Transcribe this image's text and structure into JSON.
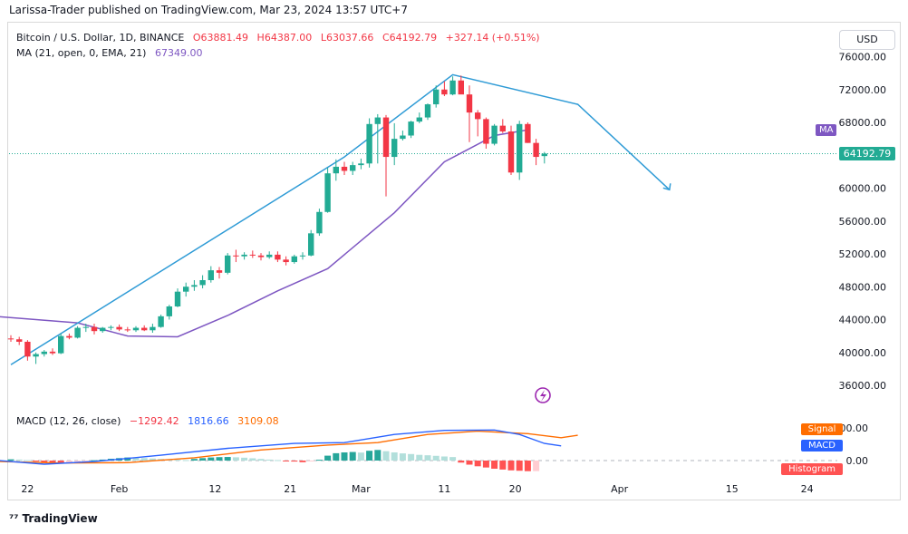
{
  "header": {
    "published": "Larissa-Trader published on TradingView.com, Mar 23, 2024 13:57 UTC+7"
  },
  "legend": {
    "symbol": "Bitcoin / U.S. Dollar, 1D, BINANCE",
    "open": "O63881.49",
    "high": "H64387.00",
    "low": "L63037.66",
    "close": "C64192.79",
    "change": "+327.14 (+0.51%)",
    "ma_label": "MA (21, open, 0, EMA, 21)",
    "ma_value": "67349.00",
    "macd_label": "MACD (12, 26, close)",
    "macd_hist": "−1292.42",
    "macd_value": "1816.66",
    "macd_signal": "3109.08"
  },
  "currency_button": "USD",
  "badges": {
    "indicator": "MA",
    "price": "64192.79",
    "signal": "Signal",
    "macd": "MACD",
    "histogram": "Histogram"
  },
  "footer": {
    "logo": "TradingView"
  },
  "colors": {
    "up": "#22ab94",
    "down": "#f23645",
    "ma": "#7e57c2",
    "projection": "#2f9bd6",
    "macd": "#2962ff",
    "signal": "#ff6d00",
    "hist_up": "#26a69a",
    "hist_down": "#ff5252"
  },
  "chart_data": {
    "type": "candlestick",
    "price_axis": {
      "ticks": [
        "76000.00",
        "72000.00",
        "68000.00",
        "64000.00",
        "60000.00",
        "56000.00",
        "52000.00",
        "48000.00",
        "44000.00",
        "40000.00",
        "36000.00"
      ],
      "range": [
        33000,
        77000
      ]
    },
    "time_axis": {
      "labels": [
        "22",
        "Feb",
        "12",
        "21",
        "Mar",
        "11",
        "20",
        "Apr",
        "15",
        "24"
      ]
    },
    "macd_axis": {
      "ticks": [
        "4000.00",
        "0.00"
      ]
    },
    "candles": [
      [
        41700,
        42100,
        41300,
        41600
      ],
      [
        41600,
        41900,
        40900,
        41300
      ],
      [
        41300,
        41500,
        39000,
        39500
      ],
      [
        39500,
        40000,
        38600,
        39800
      ],
      [
        39800,
        40300,
        39500,
        40100
      ],
      [
        40100,
        40500,
        39700,
        39900
      ],
      [
        39900,
        42300,
        39800,
        42000
      ],
      [
        42000,
        42300,
        41600,
        41800
      ],
      [
        41800,
        43200,
        41700,
        43000
      ],
      [
        43000,
        43500,
        42500,
        43100
      ],
      [
        43100,
        43500,
        42200,
        42600
      ],
      [
        42600,
        43100,
        42400,
        43000
      ],
      [
        43000,
        43300,
        42700,
        43100
      ],
      [
        43100,
        43400,
        42600,
        42800
      ],
      [
        42800,
        43100,
        42500,
        42700
      ],
      [
        42700,
        43200,
        42500,
        43000
      ],
      [
        43000,
        43300,
        42600,
        42700
      ],
      [
        42700,
        43500,
        42400,
        43100
      ],
      [
        43100,
        44600,
        43000,
        44400
      ],
      [
        44400,
        45800,
        44000,
        45600
      ],
      [
        45600,
        47800,
        45500,
        47400
      ],
      [
        47400,
        48500,
        46800,
        48000
      ],
      [
        48000,
        48800,
        47500,
        48200
      ],
      [
        48200,
        49400,
        47800,
        48800
      ],
      [
        48800,
        50500,
        48500,
        50000
      ],
      [
        50000,
        50400,
        49000,
        49700
      ],
      [
        49700,
        52100,
        49500,
        51800
      ],
      [
        51800,
        52500,
        51000,
        51700
      ],
      [
        51700,
        52200,
        51300,
        51900
      ],
      [
        51900,
        52400,
        51500,
        51800
      ],
      [
        51800,
        52100,
        51200,
        51600
      ],
      [
        51600,
        52300,
        51400,
        51900
      ],
      [
        51900,
        52300,
        51000,
        51300
      ],
      [
        51300,
        51700,
        50600,
        51000
      ],
      [
        51000,
        51900,
        50800,
        51700
      ],
      [
        51700,
        52200,
        51300,
        51800
      ],
      [
        51800,
        54900,
        51700,
        54500
      ],
      [
        54500,
        57500,
        54200,
        57100
      ],
      [
        57100,
        62500,
        57000,
        61800
      ],
      [
        61800,
        63500,
        60900,
        62600
      ],
      [
        62600,
        63200,
        61600,
        62100
      ],
      [
        62100,
        63200,
        61600,
        62800
      ],
      [
        62800,
        63600,
        62300,
        63000
      ],
      [
        63000,
        68500,
        62500,
        67800
      ],
      [
        67800,
        69000,
        63000,
        68600
      ],
      [
        68600,
        68900,
        59000,
        63800
      ],
      [
        63800,
        67900,
        62800,
        66000
      ],
      [
        66000,
        67000,
        65800,
        66400
      ],
      [
        66400,
        68200,
        66100,
        68100
      ],
      [
        68100,
        69200,
        67900,
        68600
      ],
      [
        68600,
        70300,
        68300,
        70200
      ],
      [
        70200,
        72500,
        69800,
        72000
      ],
      [
        72000,
        73000,
        71200,
        71400
      ],
      [
        71400,
        73600,
        71300,
        73100
      ],
      [
        73100,
        73700,
        71500,
        71400
      ],
      [
        71400,
        72500,
        65600,
        69200
      ],
      [
        69200,
        69500,
        66300,
        68400
      ],
      [
        68400,
        68600,
        64800,
        65400
      ],
      [
        65400,
        67800,
        65200,
        67600
      ],
      [
        67600,
        68400,
        66700,
        66900
      ],
      [
        66900,
        67600,
        61600,
        61900
      ],
      [
        61900,
        68200,
        61000,
        67800
      ],
      [
        67800,
        68000,
        65500,
        65500
      ],
      [
        65500,
        66000,
        62800,
        63800
      ],
      [
        63900,
        64400,
        63000,
        64200
      ]
    ],
    "ma_points": [
      [
        -2,
        44400
      ],
      [
        8,
        43600
      ],
      [
        14,
        42000
      ],
      [
        20,
        41900
      ],
      [
        26,
        44500
      ],
      [
        32,
        47500
      ],
      [
        38,
        50200
      ],
      [
        46,
        57000
      ],
      [
        52,
        63200
      ],
      [
        58,
        66400
      ],
      [
        62,
        67100
      ]
    ],
    "projection_points": [
      [
        0,
        38500
      ],
      [
        40,
        63800
      ],
      [
        53,
        73800
      ],
      [
        68,
        70200
      ],
      [
        79,
        59800
      ]
    ],
    "macd": {
      "macd_line": [
        [
          -2,
          50
        ],
        [
          4,
          -450
        ],
        [
          10,
          -120
        ],
        [
          18,
          650
        ],
        [
          26,
          1500
        ],
        [
          34,
          2100
        ],
        [
          40,
          2200
        ],
        [
          46,
          3200
        ],
        [
          52,
          3700
        ],
        [
          58,
          3750
        ],
        [
          61,
          3200
        ],
        [
          64,
          2100
        ],
        [
          66,
          1800
        ]
      ],
      "signal_line": [
        [
          -2,
          -100
        ],
        [
          6,
          -300
        ],
        [
          14,
          -250
        ],
        [
          22,
          350
        ],
        [
          30,
          1300
        ],
        [
          38,
          1900
        ],
        [
          44,
          2200
        ],
        [
          50,
          3200
        ],
        [
          56,
          3600
        ],
        [
          62,
          3300
        ],
        [
          66,
          2800
        ],
        [
          68,
          3100
        ]
      ],
      "histogram": [
        150,
        120,
        60,
        -80,
        -180,
        -280,
        -300,
        -260,
        -180,
        -80,
        40,
        120,
        220,
        300,
        380,
        340,
        300,
        250,
        200,
        150,
        100,
        60,
        200,
        300,
        380,
        420,
        440,
        400,
        350,
        280,
        200,
        120,
        60,
        -60,
        -120,
        -200,
        -80,
        100,
        600,
        900,
        1000,
        1050,
        980,
        1200,
        1300,
        1150,
        1000,
        880,
        800,
        700,
        650,
        580,
        500,
        430,
        -250,
        -500,
        -700,
        -850,
        -1000,
        -1100,
        -1200,
        -1250,
        -1300,
        -1290
      ]
    }
  }
}
